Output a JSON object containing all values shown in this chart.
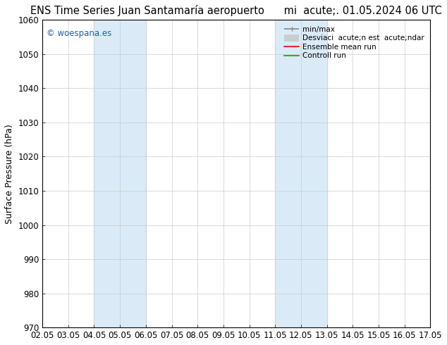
{
  "title_left": "ENS Time Series Juan Santamaría aeropuerto",
  "title_right": "mi  acute;. 01.05.2024 06 UTC",
  "ylabel": "Surface Pressure (hPa)",
  "ylim": [
    970,
    1060
  ],
  "yticks": [
    970,
    980,
    990,
    1000,
    1010,
    1020,
    1030,
    1040,
    1050,
    1060
  ],
  "xtick_labels": [
    "02.05",
    "03.05",
    "04.05",
    "05.05",
    "06.05",
    "07.05",
    "08.05",
    "09.05",
    "10.05",
    "11.05",
    "12.05",
    "13.05",
    "14.05",
    "15.05",
    "16.05",
    "17.05"
  ],
  "xtick_values": [
    0,
    1,
    2,
    3,
    4,
    5,
    6,
    7,
    8,
    9,
    10,
    11,
    12,
    13,
    14,
    15
  ],
  "shade_bands": [
    {
      "xmin": 2,
      "xmax": 4
    },
    {
      "xmin": 9,
      "xmax": 11
    }
  ],
  "shade_color": "#daeaf7",
  "watermark": "© woespana.es",
  "watermark_color": "#1a5fa8",
  "background_color": "#ffffff",
  "plot_bg_color": "#ffffff",
  "grid_color": "#cccccc",
  "legend_items": [
    {
      "label": "min/max",
      "color": "#888888",
      "lw": 1.2
    },
    {
      "label": "Desviaci  acute;n est  acute;ndar",
      "color": "#cccccc",
      "lw": 7
    },
    {
      "label": "Ensemble mean run",
      "color": "#ff0000",
      "lw": 1.2
    },
    {
      "label": "Controll run",
      "color": "#00aa00",
      "lw": 1.2
    }
  ],
  "title_fontsize": 10.5,
  "axis_label_fontsize": 9,
  "tick_fontsize": 8.5
}
